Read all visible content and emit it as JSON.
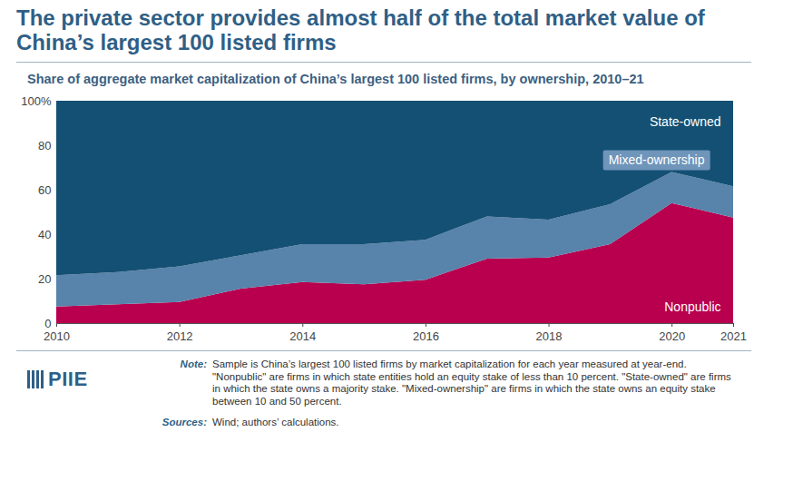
{
  "chart_data": {
    "type": "area",
    "title": "The private sector provides almost half of the total market value of China’s largest 100 listed firms",
    "subtitle": "Share of aggregate market capitalization of China’s largest 100 listed firms, by ownership, 2010–21",
    "x": [
      2010,
      2011,
      2012,
      2013,
      2014,
      2015,
      2016,
      2017,
      2018,
      2019,
      2020,
      2021
    ],
    "series": [
      {
        "name": "Nonpublic",
        "color": "#b8004f",
        "values": [
          7.5,
          8.5,
          9.5,
          15.5,
          18.5,
          17.5,
          19.5,
          29,
          29.5,
          35.5,
          54,
          47.5
        ]
      },
      {
        "name": "Mixed-ownership",
        "color": "#5883ab",
        "values": [
          14,
          14.5,
          16,
          15,
          17,
          18,
          18,
          19,
          17,
          18,
          14,
          14
        ]
      },
      {
        "name": "State-owned",
        "color": "#145073",
        "values": [
          78.5,
          77,
          74.5,
          69.5,
          64.5,
          64.5,
          62.5,
          52,
          53.5,
          46.5,
          32,
          38.5
        ]
      }
    ],
    "stacked": true,
    "xlim": [
      2010,
      2021
    ],
    "xticks": [
      2010,
      2012,
      2014,
      2016,
      2018,
      2020,
      2021
    ],
    "ylim": [
      0,
      100
    ],
    "yticks": [
      0,
      20,
      40,
      60,
      80,
      {
        "value": 100,
        "label": "100%"
      }
    ],
    "grid": false,
    "logo": "PIIE",
    "note_label": "Note:",
    "note": "Sample is China’s largest 100 listed firms by market capitalization for each year measured at year-end. \"Nonpublic\" are firms in which state entities hold an equity stake of less than 10 percent. \"State-owned\" are firms in which the state owns a majority stake. \"Mixed-ownership\" are firms in which the state owns an equity stake between 10 and 50 percent.",
    "sources_label": "Sources:",
    "sources": "Wind; authors’ calculations."
  }
}
